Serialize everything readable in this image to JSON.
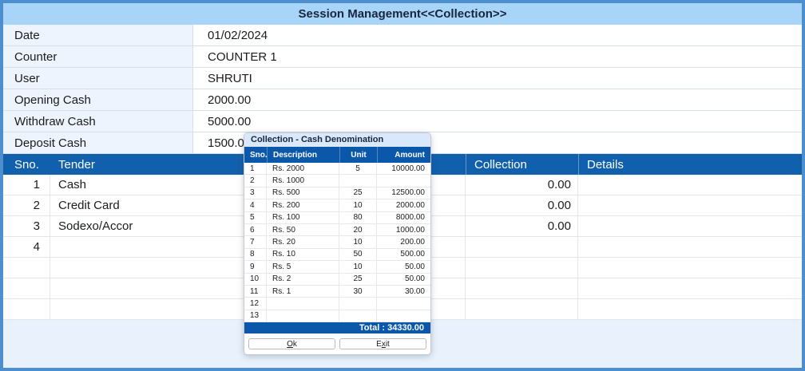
{
  "window": {
    "title": "Session Management<<Collection>>"
  },
  "colors": {
    "frame_border": "#4d8ecf",
    "titlebar_bg": "#a8d5f7",
    "label_bg": "#edf4fd",
    "header_blue": "#1160ad",
    "popup_header_blue": "#0b57a9",
    "popup_title_bg": "#d9e8fa",
    "page_bg": "#e8f1fc",
    "text_dark": "#1a1c1e",
    "title_text": "#16263f"
  },
  "form": {
    "rows": [
      {
        "label": "Date",
        "value": "01/02/2024"
      },
      {
        "label": "Counter",
        "value": "COUNTER 1"
      },
      {
        "label": "User",
        "value": "SHRUTI"
      },
      {
        "label": "Opening Cash",
        "value": "2000.00"
      },
      {
        "label": "Withdraw Cash",
        "value": "5000.00"
      },
      {
        "label": "Deposit Cash",
        "value": "1500.00"
      }
    ]
  },
  "tender_table": {
    "headers": {
      "sno": "Sno.",
      "tender": "Tender",
      "collection": "Collection",
      "details": "Details"
    },
    "rows": [
      {
        "sno": "1",
        "tender": "Cash",
        "collection": "0.00",
        "details": ""
      },
      {
        "sno": "2",
        "tender": "Credit Card",
        "collection": "0.00",
        "details": ""
      },
      {
        "sno": "3",
        "tender": "Sodexo/Accor",
        "collection": "0.00",
        "details": ""
      },
      {
        "sno": "4",
        "tender": "",
        "collection": "",
        "details": ""
      },
      {
        "sno": "",
        "tender": "",
        "collection": "",
        "details": ""
      },
      {
        "sno": "",
        "tender": "",
        "collection": "",
        "details": ""
      },
      {
        "sno": "",
        "tender": "",
        "collection": "",
        "details": ""
      }
    ]
  },
  "popup": {
    "title": "Collection - Cash Denomination",
    "headers": {
      "sno": "Sno.",
      "description": "Description",
      "unit": "Unit",
      "amount": "Amount"
    },
    "rows": [
      {
        "sno": "1",
        "description": "Rs. 2000",
        "unit": "5",
        "amount": "10000.00"
      },
      {
        "sno": "2",
        "description": "Rs. 1000",
        "unit": "",
        "amount": ""
      },
      {
        "sno": "3",
        "description": "Rs. 500",
        "unit": "25",
        "amount": "12500.00"
      },
      {
        "sno": "4",
        "description": "Rs. 200",
        "unit": "10",
        "amount": "2000.00"
      },
      {
        "sno": "5",
        "description": "Rs. 100",
        "unit": "80",
        "amount": "8000.00"
      },
      {
        "sno": "6",
        "description": "Rs. 50",
        "unit": "20",
        "amount": "1000.00"
      },
      {
        "sno": "7",
        "description": "Rs. 20",
        "unit": "10",
        "amount": "200.00"
      },
      {
        "sno": "8",
        "description": "Rs. 10",
        "unit": "50",
        "amount": "500.00"
      },
      {
        "sno": "9",
        "description": "Rs. 5",
        "unit": "10",
        "amount": "50.00"
      },
      {
        "sno": "10",
        "description": "Rs. 2",
        "unit": "25",
        "amount": "50.00"
      },
      {
        "sno": "11",
        "description": "Rs. 1",
        "unit": "30",
        "amount": "30.00"
      },
      {
        "sno": "12",
        "description": "",
        "unit": "",
        "amount": ""
      },
      {
        "sno": "13",
        "description": "",
        "unit": "",
        "amount": ""
      }
    ],
    "total_label": "Total : 34330.00",
    "buttons": {
      "ok": {
        "pre": "",
        "key": "O",
        "post": "k"
      },
      "exit": {
        "pre": "E",
        "key": "x",
        "post": "it"
      }
    }
  }
}
